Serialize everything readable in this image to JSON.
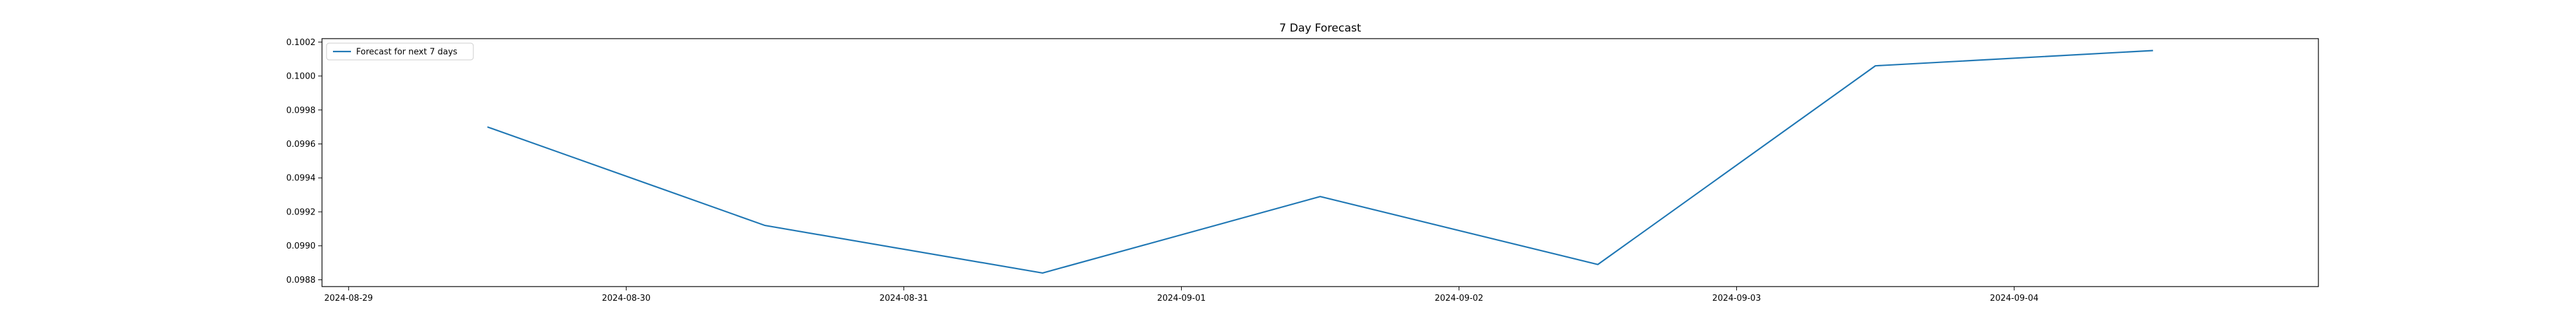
{
  "chart_data": {
    "type": "line",
    "title": "7 Day Forecast",
    "xlabel": "",
    "ylabel": "",
    "x": [
      "2024-08-29T12:00",
      "2024-08-30T12:00",
      "2024-08-31T12:00",
      "2024-09-01T12:00",
      "2024-09-02T12:00",
      "2024-09-03T12:00",
      "2024-09-04T12:00"
    ],
    "x_ticks": [
      "2024-08-29",
      "2024-08-30",
      "2024-08-31",
      "2024-09-01",
      "2024-09-02",
      "2024-09-03",
      "2024-09-04"
    ],
    "xlim": [
      "2024-08-28T21:42",
      "2024-09-05T02:18"
    ],
    "ylim": [
      0.09876,
      0.10022
    ],
    "y_ticks": [
      "0.0988",
      "0.0990",
      "0.0992",
      "0.0994",
      "0.0996",
      "0.0998",
      "0.1000",
      "0.1002"
    ],
    "series": [
      {
        "name": "Forecast for next 7 days",
        "color": "#1f77b4",
        "values": [
          0.0997,
          0.09912,
          0.09884,
          0.09929,
          0.09889,
          0.10006,
          0.10015
        ]
      }
    ],
    "legend_position": "top-left",
    "grid": false
  }
}
